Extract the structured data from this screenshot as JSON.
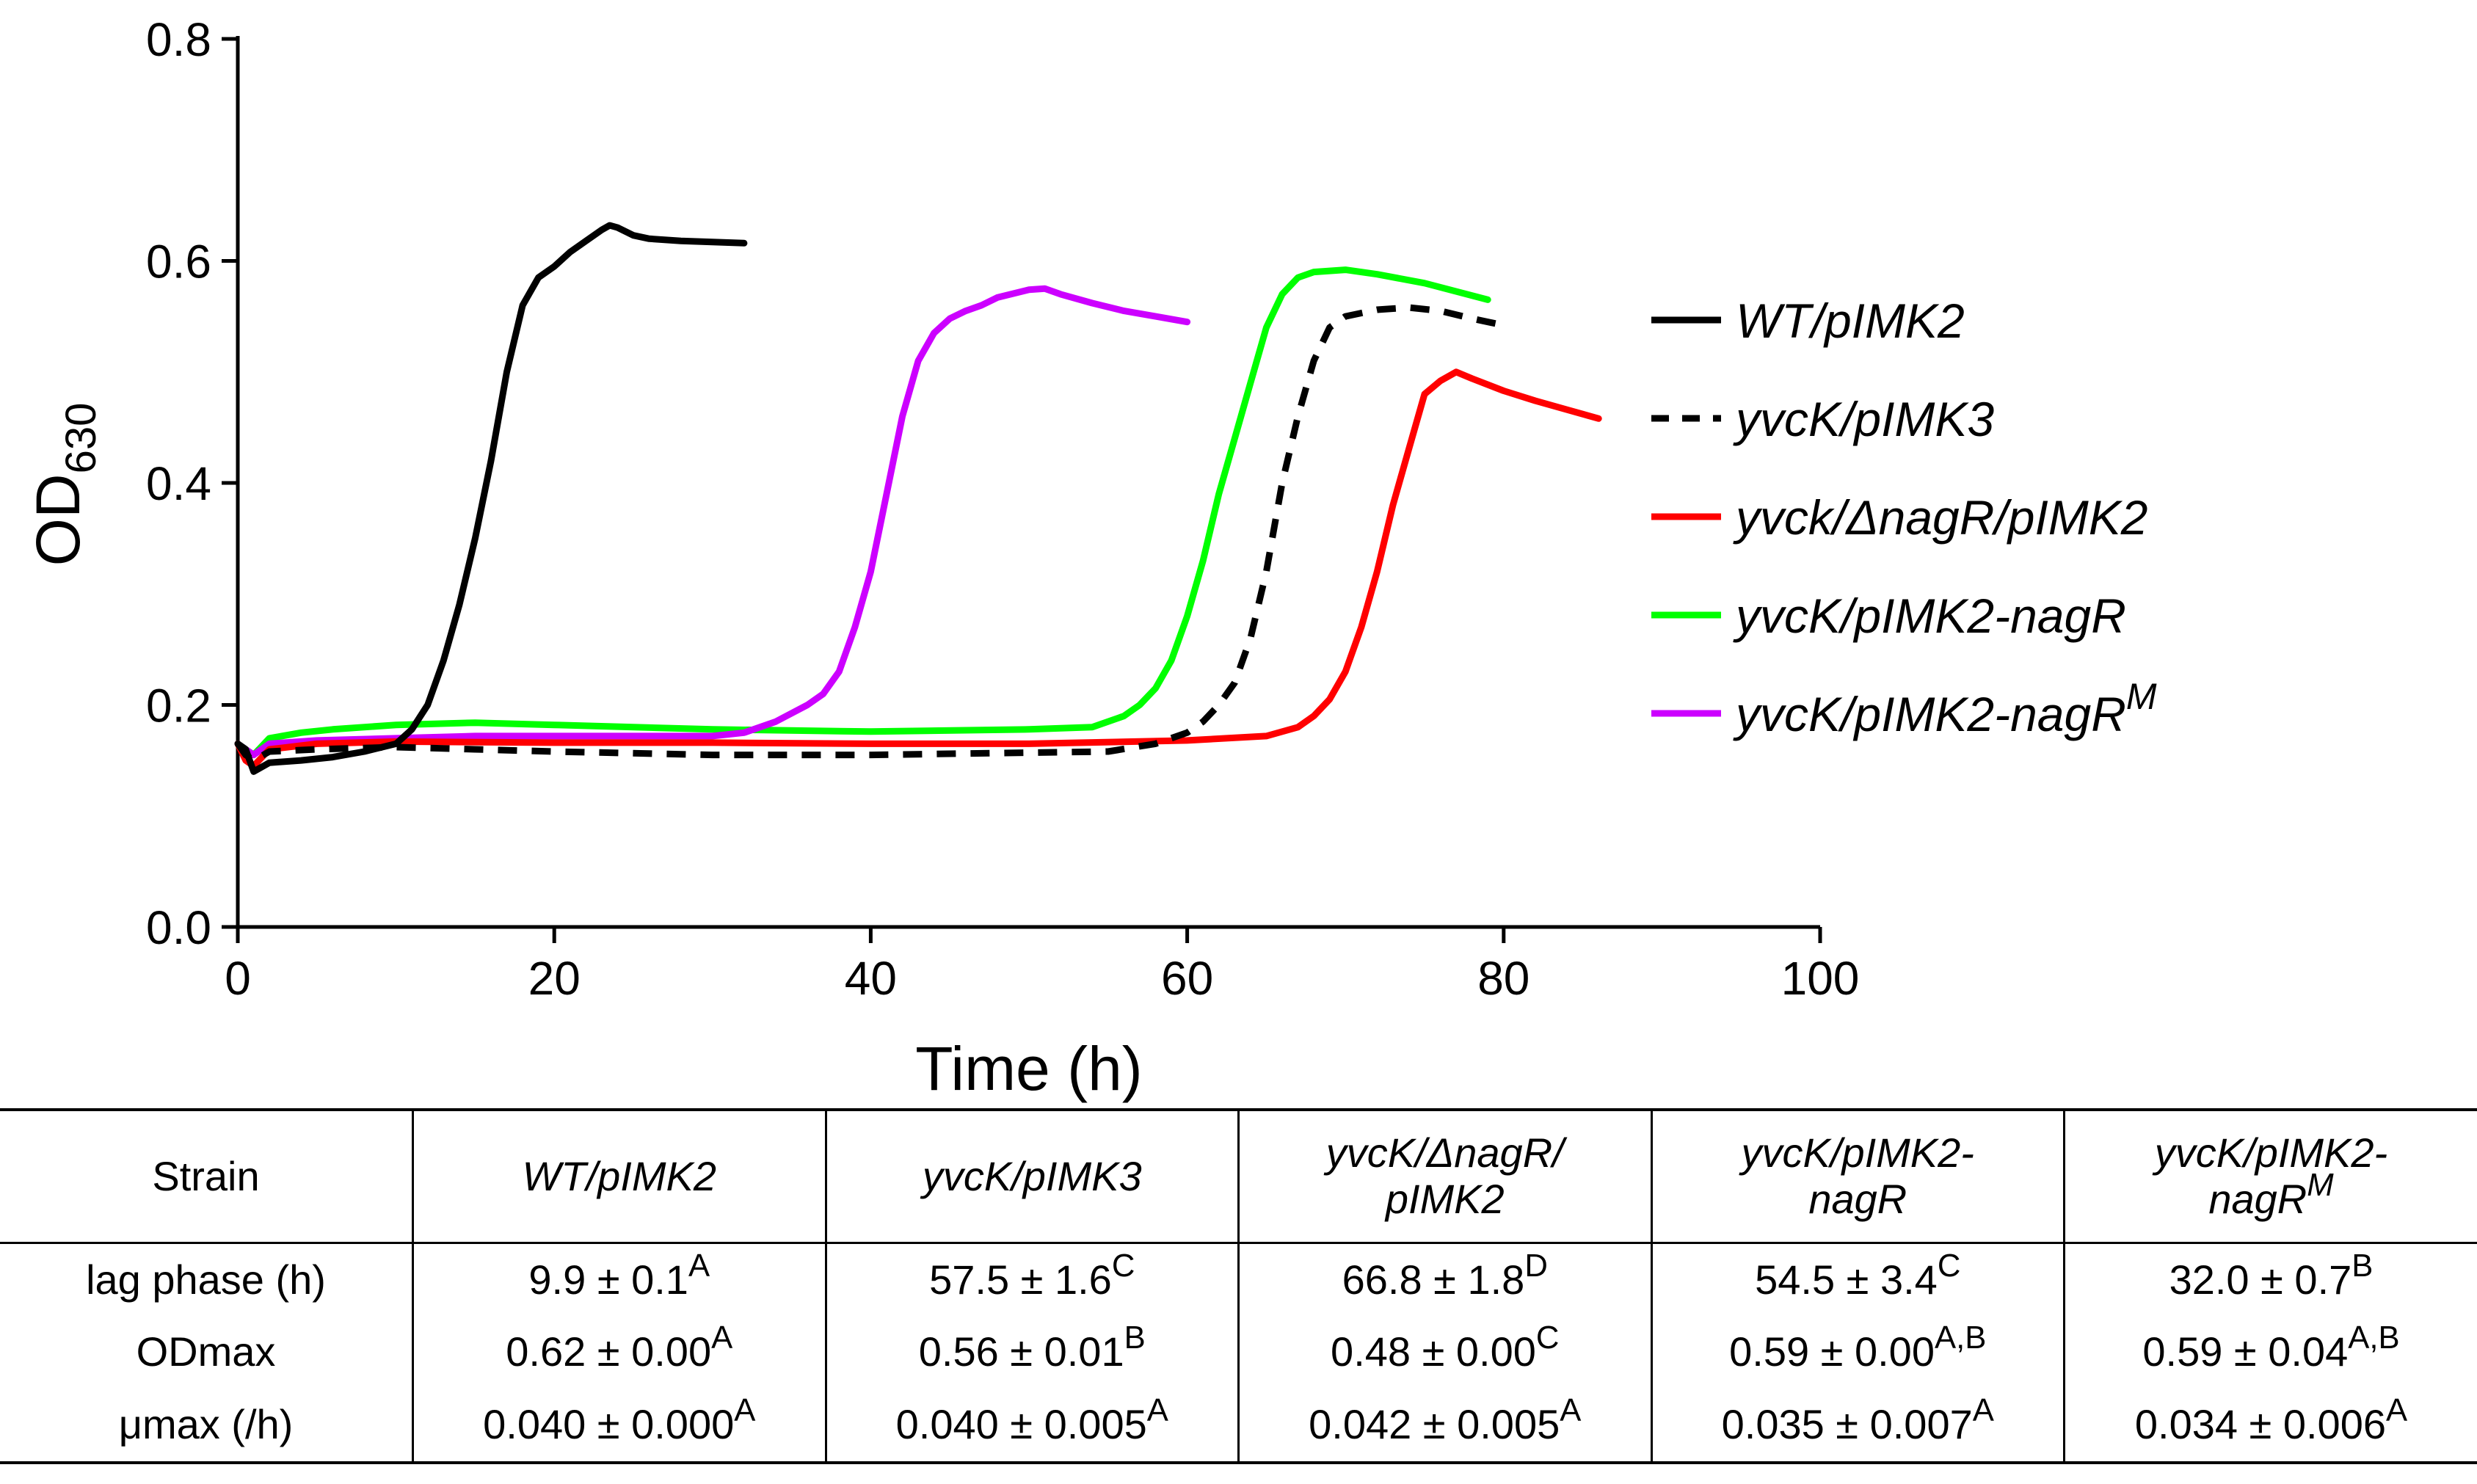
{
  "chart_data": {
    "type": "line",
    "xlabel": "Time (h)",
    "ylabel": "OD",
    "ylabel_subscript": "630",
    "xlim": [
      0,
      100
    ],
    "ylim": [
      0,
      0.8
    ],
    "x_ticks": [
      "0",
      "20",
      "40",
      "60",
      "80",
      "100"
    ],
    "y_ticks": [
      "0.0",
      "0.2",
      "0.4",
      "0.6",
      "0.8"
    ],
    "grid": false,
    "legend_position": "right",
    "series": [
      {
        "name": "WT/pIMK2",
        "color": "#000000",
        "dash": "solid",
        "x": [
          0,
          0.5,
          1,
          2,
          4,
          6,
          8,
          10,
          11,
          12,
          13,
          14,
          15,
          16,
          17,
          18,
          19,
          20,
          21,
          22,
          23,
          23.5,
          24,
          25,
          26,
          28,
          30,
          32
        ],
        "y": [
          0.165,
          0.16,
          0.14,
          0.148,
          0.15,
          0.153,
          0.158,
          0.165,
          0.178,
          0.2,
          0.24,
          0.29,
          0.35,
          0.42,
          0.5,
          0.56,
          0.585,
          0.595,
          0.608,
          0.618,
          0.628,
          0.632,
          0.63,
          0.623,
          0.62,
          0.618,
          0.617,
          0.616
        ]
      },
      {
        "name": "yvcK/pIMK3",
        "color": "#000000",
        "dash": "dashed",
        "x": [
          0,
          0.5,
          1,
          2,
          5,
          10,
          15,
          20,
          30,
          40,
          50,
          55,
          58,
          60,
          61,
          62,
          63,
          64,
          65,
          66,
          67,
          68,
          69,
          70,
          72,
          74,
          76,
          78,
          80
        ],
        "y": [
          0.165,
          0.155,
          0.15,
          0.158,
          0.16,
          0.162,
          0.16,
          0.158,
          0.155,
          0.155,
          0.157,
          0.158,
          0.165,
          0.175,
          0.185,
          0.2,
          0.22,
          0.26,
          0.32,
          0.4,
          0.46,
          0.51,
          0.54,
          0.55,
          0.556,
          0.558,
          0.555,
          0.548,
          0.542
        ]
      },
      {
        "name": "yvck/ΔnagR/pIMK2",
        "color": "#ff0000",
        "dash": "solid",
        "x": [
          0,
          0.5,
          1,
          2,
          5,
          10,
          20,
          30,
          40,
          50,
          60,
          65,
          67,
          68,
          69,
          70,
          71,
          72,
          73,
          74,
          75,
          76,
          77,
          78,
          80,
          82,
          84,
          86
        ],
        "y": [
          0.165,
          0.15,
          0.145,
          0.16,
          0.165,
          0.167,
          0.166,
          0.166,
          0.165,
          0.165,
          0.168,
          0.172,
          0.18,
          0.19,
          0.205,
          0.23,
          0.27,
          0.32,
          0.38,
          0.43,
          0.48,
          0.492,
          0.5,
          0.494,
          0.483,
          0.474,
          0.466,
          0.458
        ]
      },
      {
        "name": "yvcK/pIMK2-nagR",
        "color": "#00ff00",
        "dash": "solid",
        "x": [
          0,
          0.5,
          1,
          2,
          4,
          6,
          10,
          15,
          20,
          30,
          40,
          50,
          54,
          56,
          57,
          58,
          59,
          60,
          61,
          62,
          63,
          64,
          65,
          66,
          67,
          68,
          70,
          72,
          75,
          79
        ],
        "y": [
          0.165,
          0.16,
          0.155,
          0.17,
          0.175,
          0.178,
          0.182,
          0.184,
          0.182,
          0.178,
          0.176,
          0.178,
          0.18,
          0.19,
          0.2,
          0.215,
          0.24,
          0.28,
          0.33,
          0.39,
          0.44,
          0.49,
          0.54,
          0.57,
          0.585,
          0.59,
          0.592,
          0.588,
          0.58,
          0.565
        ]
      },
      {
        "name": "yvcK/pIMK2-nagR",
        "name_superscript": "M",
        "color": "#cc00ff",
        "dash": "solid",
        "x": [
          0,
          0.5,
          1,
          2,
          5,
          10,
          15,
          20,
          25,
          30,
          32,
          34,
          36,
          37,
          38,
          39,
          40,
          41,
          42,
          43,
          44,
          45,
          46,
          47,
          48,
          50,
          51,
          52,
          54,
          56,
          58,
          60
        ],
        "y": [
          0.165,
          0.16,
          0.155,
          0.165,
          0.168,
          0.17,
          0.172,
          0.172,
          0.172,
          0.172,
          0.175,
          0.185,
          0.2,
          0.21,
          0.23,
          0.27,
          0.32,
          0.39,
          0.46,
          0.51,
          0.535,
          0.548,
          0.555,
          0.56,
          0.567,
          0.574,
          0.575,
          0.57,
          0.562,
          0.555,
          0.55,
          0.545
        ]
      }
    ]
  },
  "table": {
    "columns": [
      {
        "line1": "Strain",
        "line2": "",
        "sup": "",
        "italic": false
      },
      {
        "line1": "WT/pIMK2",
        "line2": "",
        "sup": "",
        "italic": true
      },
      {
        "line1": "yvcK/pIMK3",
        "line2": "",
        "sup": "",
        "italic": true
      },
      {
        "line1": "yvcK/ΔnagR/",
        "line2": "pIMK2",
        "sup": "",
        "italic": true
      },
      {
        "line1": "yvcK/pIMK2-",
        "line2": "nagR",
        "sup": "",
        "italic": true
      },
      {
        "line1": "yvcK/pIMK2-",
        "line2": "nagR",
        "sup": "M",
        "italic": true
      }
    ],
    "rows": [
      {
        "label": "lag phase (h)",
        "cells": [
          {
            "value": "9.9 ± 0.1",
            "sup": "A"
          },
          {
            "value": "57.5 ± 1.6",
            "sup": "C"
          },
          {
            "value": "66.8 ± 1.8",
            "sup": "D"
          },
          {
            "value": "54.5 ± 3.4",
            "sup": "C"
          },
          {
            "value": "32.0 ± 0.7",
            "sup": "B"
          }
        ]
      },
      {
        "label": "ODmax",
        "cells": [
          {
            "value": "0.62 ± 0.00",
            "sup": "A"
          },
          {
            "value": "0.56 ± 0.01",
            "sup": "B"
          },
          {
            "value": "0.48 ± 0.00",
            "sup": "C"
          },
          {
            "value": "0.59 ± 0.00",
            "sup": "A,B"
          },
          {
            "value": "0.59 ± 0.04",
            "sup": "A,B"
          }
        ]
      },
      {
        "label": "μmax (/h)",
        "cells": [
          {
            "value": "0.040 ± 0.000",
            "sup": "A"
          },
          {
            "value": "0.040 ± 0.005",
            "sup": "A"
          },
          {
            "value": "0.042 ± 0.005",
            "sup": "A"
          },
          {
            "value": "0.035 ± 0.007",
            "sup": "A"
          },
          {
            "value": "0.034 ± 0.006",
            "sup": "A"
          }
        ]
      }
    ]
  }
}
